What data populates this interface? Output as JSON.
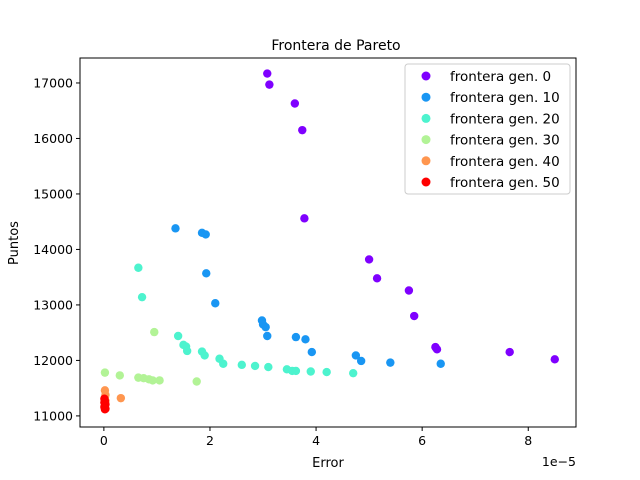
{
  "chart_data": {
    "type": "scatter",
    "title": "Frontera de Pareto",
    "xlabel": "Error",
    "ylabel": "Puntos",
    "x_offset_label": "1e−5",
    "xlim": [
      -0.45,
      8.9
    ],
    "ylim": [
      10800,
      17450
    ],
    "xticks": [
      0,
      2,
      4,
      6,
      8
    ],
    "xtick_labels": [
      "0",
      "2",
      "4",
      "6",
      "8"
    ],
    "yticks": [
      11000,
      12000,
      13000,
      14000,
      15000,
      16000,
      17000
    ],
    "ytick_labels": [
      "11000",
      "12000",
      "13000",
      "14000",
      "15000",
      "16000",
      "17000"
    ],
    "grid": false,
    "legend_position": "top-right",
    "series": [
      {
        "name": "frontera gen. 0",
        "color": "#7f00ff",
        "points": [
          [
            3.08,
            17170
          ],
          [
            3.12,
            16970
          ],
          [
            3.6,
            16630
          ],
          [
            3.74,
            16150
          ],
          [
            3.78,
            14560
          ],
          [
            5.0,
            13820
          ],
          [
            5.15,
            13480
          ],
          [
            5.75,
            13260
          ],
          [
            5.85,
            12800
          ],
          [
            6.25,
            12240
          ],
          [
            6.28,
            12200
          ],
          [
            7.65,
            12150
          ],
          [
            8.5,
            12020
          ]
        ]
      },
      {
        "name": "frontera gen. 10",
        "color": "#1996f3",
        "points": [
          [
            1.35,
            14380
          ],
          [
            1.85,
            14300
          ],
          [
            1.92,
            14270
          ],
          [
            1.93,
            13570
          ],
          [
            2.1,
            13030
          ],
          [
            2.98,
            12720
          ],
          [
            3.0,
            12650
          ],
          [
            3.05,
            12600
          ],
          [
            3.08,
            12440
          ],
          [
            3.62,
            12420
          ],
          [
            3.8,
            12380
          ],
          [
            3.92,
            12150
          ],
          [
            4.75,
            12090
          ],
          [
            4.85,
            11990
          ],
          [
            5.4,
            11960
          ],
          [
            6.35,
            11940
          ]
        ]
      },
      {
        "name": "frontera gen. 20",
        "color": "#4df3ce",
        "points": [
          [
            0.65,
            13670
          ],
          [
            0.72,
            13140
          ],
          [
            1.4,
            12440
          ],
          [
            1.5,
            12280
          ],
          [
            1.55,
            12250
          ],
          [
            1.57,
            12170
          ],
          [
            1.85,
            12160
          ],
          [
            1.9,
            12090
          ],
          [
            2.18,
            12030
          ],
          [
            2.25,
            11940
          ],
          [
            2.6,
            11920
          ],
          [
            2.85,
            11900
          ],
          [
            3.1,
            11880
          ],
          [
            3.45,
            11840
          ],
          [
            3.55,
            11810
          ],
          [
            3.62,
            11810
          ],
          [
            3.9,
            11800
          ],
          [
            4.2,
            11790
          ],
          [
            4.7,
            11770
          ]
        ]
      },
      {
        "name": "frontera gen. 30",
        "color": "#b2f396",
        "points": [
          [
            0.02,
            11780
          ],
          [
            0.3,
            11730
          ],
          [
            0.65,
            11690
          ],
          [
            0.75,
            11680
          ],
          [
            0.85,
            11660
          ],
          [
            0.92,
            11640
          ],
          [
            1.05,
            11640
          ],
          [
            1.75,
            11620
          ],
          [
            0.95,
            12510
          ]
        ]
      },
      {
        "name": "frontera gen. 40",
        "color": "#ff964f",
        "points": [
          [
            0.02,
            11460
          ],
          [
            0.03,
            11380
          ],
          [
            0.02,
            11330
          ],
          [
            0.32,
            11320
          ],
          [
            0.03,
            11270
          ]
        ]
      },
      {
        "name": "frontera gen. 50",
        "color": "#ff0000",
        "points": [
          [
            0.01,
            11310
          ],
          [
            0.02,
            11270
          ],
          [
            0.01,
            11240
          ],
          [
            0.03,
            11210
          ],
          [
            0.02,
            11180
          ],
          [
            0.01,
            11160
          ],
          [
            0.03,
            11130
          ],
          [
            0.02,
            11120
          ]
        ]
      }
    ]
  }
}
